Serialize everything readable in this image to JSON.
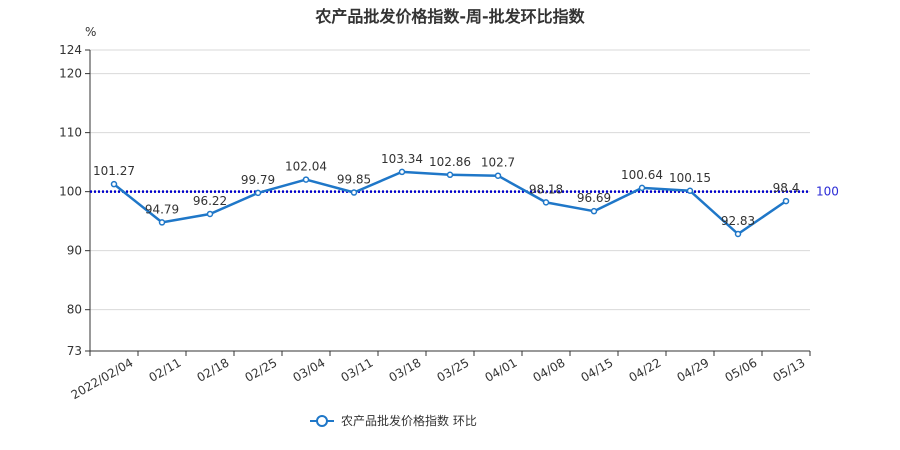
{
  "chart_data": {
    "type": "line",
    "title": "农产品批发价格指数-周-批发环比指数",
    "unit": "%",
    "categories": [
      "2022/02/04",
      "02/11",
      "02/18",
      "02/25",
      "03/04",
      "03/11",
      "03/18",
      "03/25",
      "04/01",
      "04/08",
      "04/15",
      "04/22",
      "04/29",
      "05/06",
      "05/13"
    ],
    "series": [
      {
        "name": "农产品批发价格指数  环比",
        "values": [
          101.27,
          94.79,
          96.22,
          99.79,
          102.04,
          99.85,
          103.34,
          102.86,
          102.7,
          98.18,
          96.69,
          100.64,
          100.15,
          92.83,
          98.4
        ],
        "color": "#1f77c8"
      }
    ],
    "data_labels": [
      "101.27",
      "94.79",
      "96.22",
      "99.79",
      "102.04",
      "99.85",
      "103.34",
      "102.86",
      "102.7",
      "98.18",
      "96.69",
      "100.64",
      "100.15",
      "92.83",
      "98.4"
    ],
    "yticks": [
      73,
      80,
      90,
      100,
      110,
      120,
      124
    ],
    "ylim": [
      73,
      124
    ],
    "reference_line": {
      "value": 100,
      "label": "100",
      "color": "#0000cc"
    },
    "grid": true,
    "legend_position": "bottom-center"
  }
}
